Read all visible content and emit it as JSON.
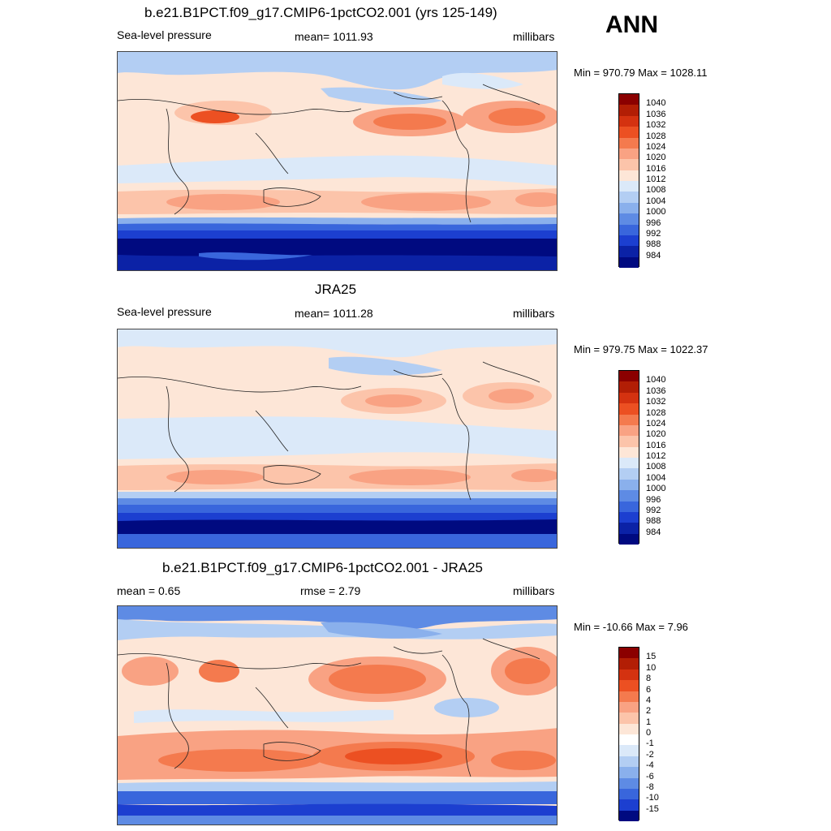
{
  "season": "ANN",
  "panels": [
    {
      "title": "b.e21.B1PCT.f09_g17.CMIP6-1pctCO2.001 (yrs 125-149)",
      "left_label": "Sea-level pressure",
      "center_label": "mean= 1011.93",
      "right_label": "millibars",
      "minmax": "Min = 970.79 Max = 1028.11"
    },
    {
      "title": "JRA25",
      "left_label": "Sea-level pressure",
      "center_label": "mean= 1011.28",
      "right_label": "millibars",
      "minmax": "Min = 979.75 Max = 1022.37"
    },
    {
      "title": "b.e21.B1PCT.f09_g17.CMIP6-1pctCO2.001 - JRA25",
      "left_label": "mean =   0.65",
      "center_label": "rmse =   2.79",
      "right_label": "millibars",
      "minmax": "Min = -10.66 Max =   7.96"
    }
  ],
  "colorbar_abs": {
    "labels": [
      "1040",
      "1036",
      "1032",
      "1028",
      "1024",
      "1020",
      "1016",
      "1012",
      "1008",
      "1004",
      "1000",
      "996",
      "992",
      "988",
      "984"
    ],
    "colors": [
      "#8b0000",
      "#b21e05",
      "#d43210",
      "#ec5022",
      "#f47a4e",
      "#f9a283",
      "#fcc4aa",
      "#fde6d7",
      "#dbe9f9",
      "#b3cef3",
      "#8ab0ec",
      "#5e8be4",
      "#3966dc",
      "#1c3fd0",
      "#0b22a6",
      "#000a80"
    ]
  },
  "colorbar_diff": {
    "labels": [
      "15",
      "10",
      "8",
      "6",
      "4",
      "2",
      "1",
      "0",
      "-1",
      "-2",
      "-4",
      "-6",
      "-8",
      "-10",
      "-15"
    ],
    "colors": [
      "#8b0000",
      "#b21e05",
      "#d43210",
      "#ec5022",
      "#f47a4e",
      "#f9a283",
      "#fcc4aa",
      "#fde6d7",
      "#ffffff",
      "#dbe9f9",
      "#b3cef3",
      "#8ab0ec",
      "#5e8be4",
      "#3966dc",
      "#1c3fd0",
      "#000a80"
    ]
  }
}
